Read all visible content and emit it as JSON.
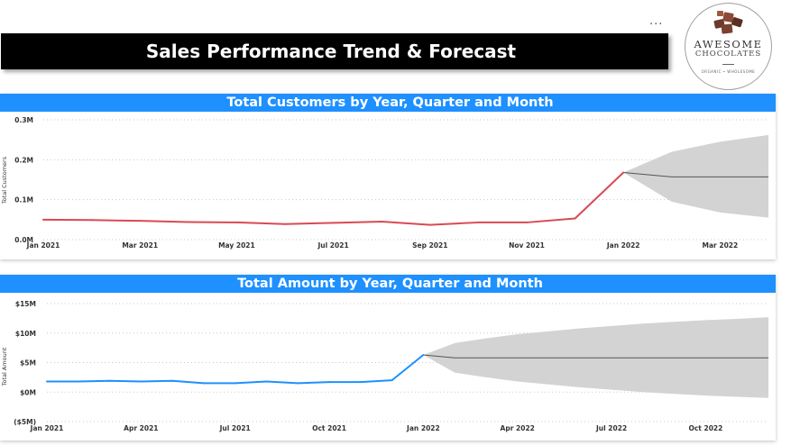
{
  "page_title": "Sales Performance Trend & Forecast",
  "more_options": "...",
  "logo": {
    "line1": "AWESOME",
    "line2": "CHOCOLATES",
    "tagline": "ORGANIC • WHOLESOME"
  },
  "chart_data": [
    {
      "type": "line",
      "title": "Total Customers by Year, Quarter and Month",
      "ylabel": "Total Customers",
      "xlabel": "",
      "x": [
        "2021-01",
        "2021-02",
        "2021-03",
        "2021-04",
        "2021-05",
        "2021-06",
        "2021-07",
        "2021-08",
        "2021-09",
        "2021-10",
        "2021-11",
        "2021-12",
        "2022-01"
      ],
      "x_tick_labels": [
        "Jan 2021",
        "Mar 2021",
        "May 2021",
        "Jul 2021",
        "Sep 2021",
        "Nov 2021",
        "Jan 2022",
        "Mar 2022"
      ],
      "y_tick_labels": [
        "0.0M",
        "0.1M",
        "0.2M",
        "0.3M"
      ],
      "ylim": [
        0,
        300000
      ],
      "series": [
        {
          "values": [
            50000,
            49000,
            47000,
            44000,
            43000,
            39000,
            42000,
            45000,
            37000,
            43000,
            43000,
            53000,
            168000
          ],
          "color": "#d94a54"
        }
      ],
      "forecast": {
        "x": [
          "2022-01",
          "2022-02",
          "2022-03",
          "2022-04"
        ],
        "values": [
          168000,
          157000,
          157000,
          157000
        ],
        "upper": [
          168000,
          220000,
          245000,
          262000
        ],
        "lower": [
          168000,
          95000,
          68000,
          55000
        ],
        "line_color": "#555555",
        "band_color": "#d3d3d3"
      },
      "grid": true
    },
    {
      "type": "line",
      "title": "Total Amount by Year, Quarter and Month",
      "ylabel": "Total Amount",
      "xlabel": "",
      "x": [
        "2021-01",
        "2021-02",
        "2021-03",
        "2021-04",
        "2021-05",
        "2021-06",
        "2021-07",
        "2021-08",
        "2021-09",
        "2021-10",
        "2021-11",
        "2021-12",
        "2022-01"
      ],
      "x_tick_labels": [
        "Jan 2021",
        "Apr 2021",
        "Jul 2021",
        "Oct 2021",
        "Jan 2022",
        "Apr 2022",
        "Jul 2022",
        "Oct 2022"
      ],
      "y_tick_labels": [
        "($5M)",
        "$0M",
        "$5M",
        "$10M",
        "$15M"
      ],
      "ylim": [
        -5000000,
        15000000
      ],
      "series": [
        {
          "values": [
            1800000,
            1800000,
            1900000,
            1800000,
            1900000,
            1500000,
            1500000,
            1800000,
            1500000,
            1700000,
            1700000,
            2000000,
            6300000
          ],
          "color": "#1e90ff"
        }
      ],
      "forecast": {
        "x": [
          "2022-01",
          "2022-02",
          "2022-03",
          "2022-04",
          "2022-05",
          "2022-06",
          "2022-07",
          "2022-08",
          "2022-09",
          "2022-10",
          "2022-11",
          "2022-12"
        ],
        "values": [
          6300000,
          5800000,
          5800000,
          5800000,
          5800000,
          5800000,
          5800000,
          5800000,
          5800000,
          5800000,
          5800000,
          5800000
        ],
        "upper": [
          6300000,
          8300000,
          9100000,
          9800000,
          10300000,
          10800000,
          11200000,
          11600000,
          11900000,
          12200000,
          12400000,
          12700000
        ],
        "lower": [
          6300000,
          3300000,
          2500000,
          1800000,
          1300000,
          800000,
          400000,
          0,
          -300000,
          -600000,
          -800000,
          -1000000
        ],
        "line_color": "#555555",
        "band_color": "#d3d3d3"
      },
      "grid": true
    }
  ]
}
